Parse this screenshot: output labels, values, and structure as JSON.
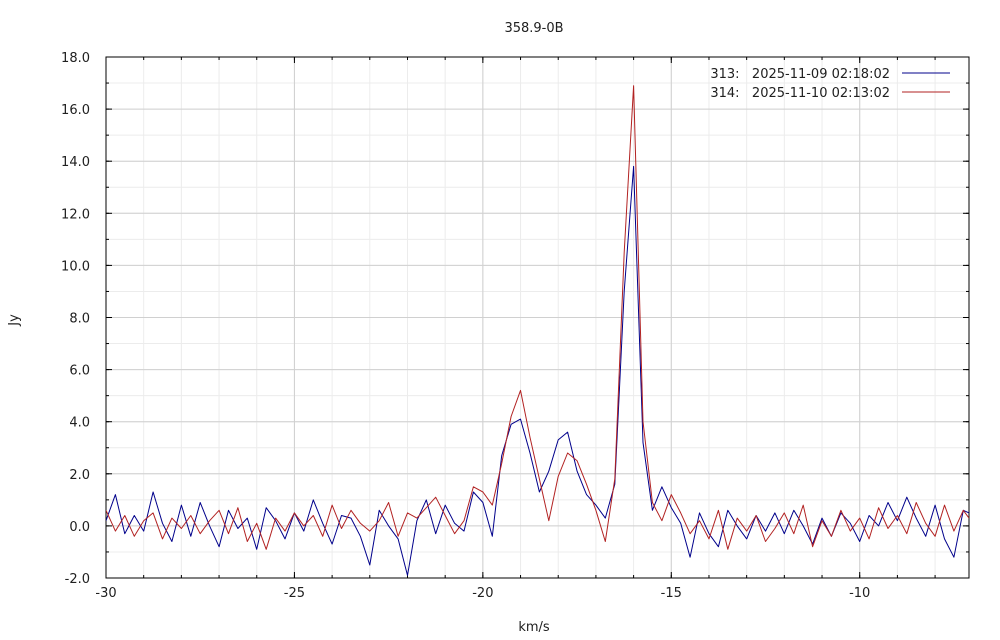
{
  "chart_data": {
    "type": "line",
    "title": "358.9-0B",
    "xlabel": "km/s",
    "ylabel": "Jy",
    "xlim": [
      -30,
      -7.1
    ],
    "ylim": [
      -2.0,
      18.0
    ],
    "x_ticks": [
      -30,
      -25,
      -20,
      -15,
      -10
    ],
    "x_tick_labels": [
      "-30",
      "-25",
      "-20",
      "-15",
      "-10"
    ],
    "y_ticks": [
      -2,
      0,
      2,
      4,
      6,
      8,
      10,
      12,
      14,
      16,
      18
    ],
    "y_tick_labels": [
      "-2.0",
      "0.0",
      "2.0",
      "4.0",
      "6.0",
      "8.0",
      "10.0",
      "12.0",
      "14.0",
      "16.0",
      "18.0"
    ],
    "grid": true,
    "legend_position": "top-right",
    "series": [
      {
        "name": "313:   2025-11-09 02:18:02",
        "color": "#00008b",
        "x": [
          -30.0,
          -29.75,
          -29.5,
          -29.25,
          -29.0,
          -28.75,
          -28.5,
          -28.25,
          -28.0,
          -27.75,
          -27.5,
          -27.25,
          -27.0,
          -26.75,
          -26.5,
          -26.25,
          -26.0,
          -25.75,
          -25.5,
          -25.25,
          -25.0,
          -24.75,
          -24.5,
          -24.25,
          -24.0,
          -23.75,
          -23.5,
          -23.25,
          -23.0,
          -22.75,
          -22.5,
          -22.25,
          -22.0,
          -21.75,
          -21.5,
          -21.25,
          -21.0,
          -20.75,
          -20.5,
          -20.25,
          -20.0,
          -19.75,
          -19.5,
          -19.25,
          -19.0,
          -18.75,
          -18.5,
          -18.25,
          -18.0,
          -17.75,
          -17.5,
          -17.25,
          -17.0,
          -16.75,
          -16.5,
          -16.25,
          -16.0,
          -15.75,
          -15.5,
          -15.25,
          -15.0,
          -14.75,
          -14.5,
          -14.25,
          -14.0,
          -13.75,
          -13.5,
          -13.25,
          -13.0,
          -12.75,
          -12.5,
          -12.25,
          -12.0,
          -11.75,
          -11.5,
          -11.25,
          -11.0,
          -10.75,
          -10.5,
          -10.25,
          -10.0,
          -9.75,
          -9.5,
          -9.25,
          -9.0,
          -8.75,
          -8.5,
          -8.25,
          -8.0,
          -7.75,
          -7.5,
          -7.25,
          -7.1
        ],
        "y": [
          0.2,
          1.2,
          -0.3,
          0.4,
          -0.2,
          1.3,
          0.1,
          -0.6,
          0.8,
          -0.4,
          0.9,
          0.0,
          -0.8,
          0.6,
          -0.1,
          0.3,
          -0.9,
          0.7,
          0.2,
          -0.5,
          0.5,
          -0.2,
          1.0,
          0.1,
          -0.7,
          0.4,
          0.3,
          -0.4,
          -1.5,
          0.6,
          0.0,
          -0.5,
          -1.9,
          0.2,
          1.0,
          -0.3,
          0.8,
          0.1,
          -0.2,
          1.3,
          0.9,
          -0.4,
          2.7,
          3.9,
          4.1,
          2.8,
          1.3,
          2.1,
          3.3,
          3.6,
          2.1,
          1.2,
          0.8,
          0.3,
          1.6,
          9.0,
          13.8,
          3.2,
          0.6,
          1.5,
          0.7,
          0.1,
          -1.2,
          0.5,
          -0.3,
          -0.8,
          0.6,
          0.0,
          -0.5,
          0.4,
          -0.2,
          0.5,
          -0.3,
          0.6,
          0.0,
          -0.7,
          0.3,
          -0.4,
          0.5,
          0.1,
          -0.6,
          0.4,
          0.0,
          0.9,
          0.2,
          1.1,
          0.3,
          -0.4,
          0.8,
          -0.5,
          -1.2,
          0.6,
          0.5
        ]
      },
      {
        "name": "314:   2025-11-10 02:13:02",
        "color": "#b22222",
        "x": [
          -30.0,
          -29.75,
          -29.5,
          -29.25,
          -29.0,
          -28.75,
          -28.5,
          -28.25,
          -28.0,
          -27.75,
          -27.5,
          -27.25,
          -27.0,
          -26.75,
          -26.5,
          -26.25,
          -26.0,
          -25.75,
          -25.5,
          -25.25,
          -25.0,
          -24.75,
          -24.5,
          -24.25,
          -24.0,
          -23.75,
          -23.5,
          -23.25,
          -23.0,
          -22.75,
          -22.5,
          -22.25,
          -22.0,
          -21.75,
          -21.5,
          -21.25,
          -21.0,
          -20.75,
          -20.5,
          -20.25,
          -20.0,
          -19.75,
          -19.5,
          -19.25,
          -19.0,
          -18.75,
          -18.5,
          -18.25,
          -18.0,
          -17.75,
          -17.5,
          -17.25,
          -17.0,
          -16.75,
          -16.5,
          -16.25,
          -16.0,
          -15.75,
          -15.5,
          -15.25,
          -15.0,
          -14.75,
          -14.5,
          -14.25,
          -14.0,
          -13.75,
          -13.5,
          -13.25,
          -13.0,
          -12.75,
          -12.5,
          -12.25,
          -12.0,
          -11.75,
          -11.5,
          -11.25,
          -11.0,
          -10.75,
          -10.5,
          -10.25,
          -10.0,
          -9.75,
          -9.5,
          -9.25,
          -9.0,
          -8.75,
          -8.5,
          -8.25,
          -8.0,
          -7.75,
          -7.5,
          -7.25,
          -7.1
        ],
        "y": [
          0.6,
          -0.2,
          0.4,
          -0.4,
          0.2,
          0.5,
          -0.5,
          0.3,
          -0.1,
          0.4,
          -0.3,
          0.2,
          0.6,
          -0.3,
          0.7,
          -0.6,
          0.1,
          -0.9,
          0.3,
          -0.2,
          0.5,
          0.0,
          0.4,
          -0.4,
          0.8,
          -0.1,
          0.6,
          0.1,
          -0.2,
          0.2,
          0.9,
          -0.4,
          0.5,
          0.3,
          0.7,
          1.1,
          0.4,
          -0.3,
          0.2,
          1.5,
          1.3,
          0.8,
          2.4,
          4.2,
          5.2,
          3.4,
          1.8,
          0.2,
          1.9,
          2.8,
          2.5,
          1.6,
          0.6,
          -0.6,
          1.8,
          10.5,
          16.9,
          4.0,
          0.9,
          0.2,
          1.2,
          0.5,
          -0.3,
          0.2,
          -0.5,
          0.6,
          -0.9,
          0.3,
          -0.2,
          0.4,
          -0.6,
          -0.1,
          0.5,
          -0.3,
          0.8,
          -0.8,
          0.2,
          -0.4,
          0.6,
          -0.2,
          0.3,
          -0.5,
          0.7,
          -0.1,
          0.4,
          -0.3,
          0.9,
          0.1,
          -0.4,
          0.8,
          -0.2,
          0.6,
          0.3
        ]
      }
    ]
  }
}
